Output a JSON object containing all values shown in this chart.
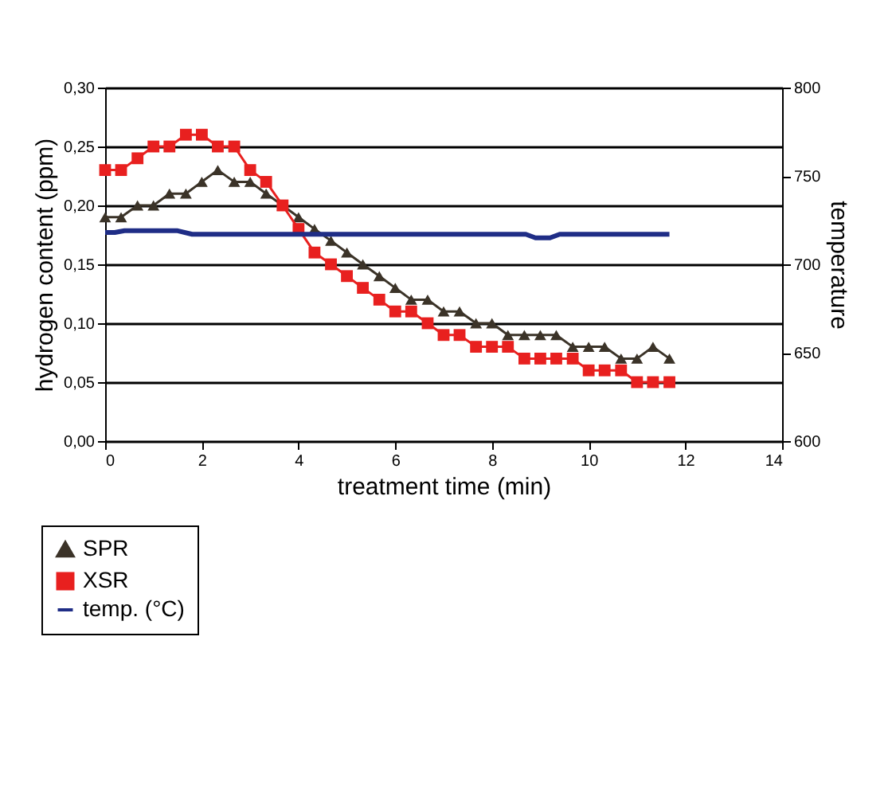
{
  "chart_data": {
    "type": "line",
    "xlabel": "treatment time (min)",
    "ylabel": "hydrogen content (ppm)",
    "y2label": "temperature",
    "xlim": [
      0,
      14
    ],
    "xticks": [
      0,
      2,
      4,
      6,
      8,
      10,
      12,
      14
    ],
    "ylim": [
      0,
      0.3
    ],
    "yticks": [
      {
        "value": 0,
        "label": "0,00"
      },
      {
        "value": 0.05,
        "label": "0,05"
      },
      {
        "value": 0.1,
        "label": "0,10"
      },
      {
        "value": 0.15,
        "label": "0,15"
      },
      {
        "value": 0.2,
        "label": "0,20"
      },
      {
        "value": 0.25,
        "label": "0,25"
      },
      {
        "value": 0.3,
        "label": "0,30"
      }
    ],
    "y2lim": [
      600,
      800
    ],
    "y2ticks": [
      600,
      650,
      700,
      750,
      800
    ],
    "grid": "y",
    "legend": "bottom left",
    "x": [
      0,
      0.33,
      0.67,
      1,
      1.33,
      1.67,
      2,
      2.33,
      2.67,
      3,
      3.33,
      3.67,
      4,
      4.33,
      4.67,
      5,
      5.33,
      5.67,
      6,
      6.33,
      6.67,
      7,
      7.33,
      7.67,
      8,
      8.33,
      8.67,
      9,
      9.33,
      9.67,
      10,
      10.33,
      10.67,
      11,
      11.33,
      11.67
    ],
    "series": [
      {
        "name": "SPR",
        "color": "#3b3328",
        "marker": "triangle",
        "values": [
          0.19,
          0.19,
          0.2,
          0.2,
          0.21,
          0.21,
          0.22,
          0.23,
          0.22,
          0.22,
          0.21,
          0.2,
          0.19,
          0.18,
          0.17,
          0.16,
          0.15,
          0.14,
          0.13,
          0.12,
          0.12,
          0.11,
          0.11,
          0.1,
          0.1,
          0.09,
          0.09,
          0.09,
          0.09,
          0.08,
          0.08,
          0.08,
          0.07,
          0.07,
          0.08,
          0.07
        ]
      },
      {
        "name": "XSR",
        "color": "#e8201f",
        "marker": "square",
        "values": [
          0.23,
          0.23,
          0.24,
          0.25,
          0.25,
          0.26,
          0.26,
          0.25,
          0.25,
          0.23,
          0.22,
          0.2,
          0.18,
          0.16,
          0.15,
          0.14,
          0.13,
          0.12,
          0.11,
          0.11,
          0.1,
          0.09,
          0.09,
          0.08,
          0.08,
          0.08,
          0.07,
          0.07,
          0.07,
          0.07,
          0.06,
          0.06,
          0.06,
          0.05,
          0.05,
          0.05
        ]
      },
      {
        "name": "temp. (°C)",
        "color": "#1f2d86",
        "marker": "none",
        "axis": "y2",
        "x": [
          0,
          0.2,
          0.4,
          1.5,
          1.8,
          8.7,
          8.9,
          9.2,
          9.4,
          11.67
        ],
        "values": [
          718,
          718,
          719,
          719,
          717,
          717,
          715,
          715,
          717,
          717
        ]
      }
    ]
  }
}
